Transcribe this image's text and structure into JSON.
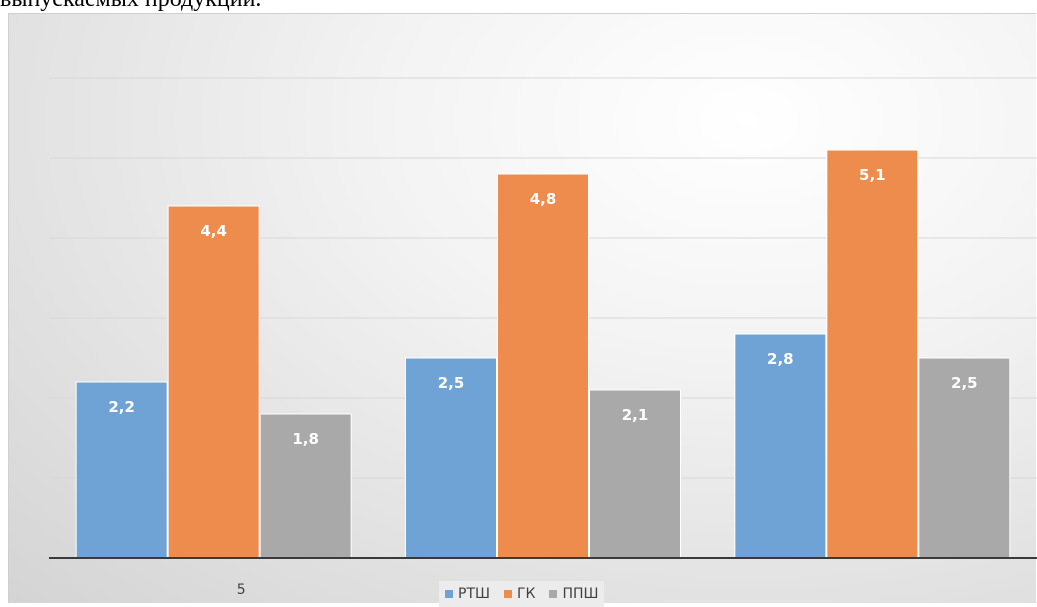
{
  "document": {
    "text_above": "выпускаемых продукций."
  },
  "chart_data": {
    "type": "bar",
    "title": "",
    "xlabel": "",
    "ylabel": "",
    "categories": [
      "5",
      "",
      ""
    ],
    "ylim": [
      0,
      6
    ],
    "grid": true,
    "legend_position": "bottom",
    "series": [
      {
        "name": "РТШ",
        "color": "#6fa3d6",
        "values": [
          2.2,
          2.5,
          2.8
        ],
        "labels": [
          "2,2",
          "2,5",
          "2,8"
        ]
      },
      {
        "name": "ГК",
        "color": "#ed8c4c",
        "values": [
          4.4,
          4.8,
          5.1
        ],
        "labels": [
          "4,4",
          "4,8",
          "5,1"
        ]
      },
      {
        "name": "ППШ",
        "color": "#a9a9a9",
        "values": [
          1.8,
          2.1,
          2.5
        ],
        "labels": [
          "1,8",
          "2,1",
          "2,5"
        ]
      }
    ]
  }
}
